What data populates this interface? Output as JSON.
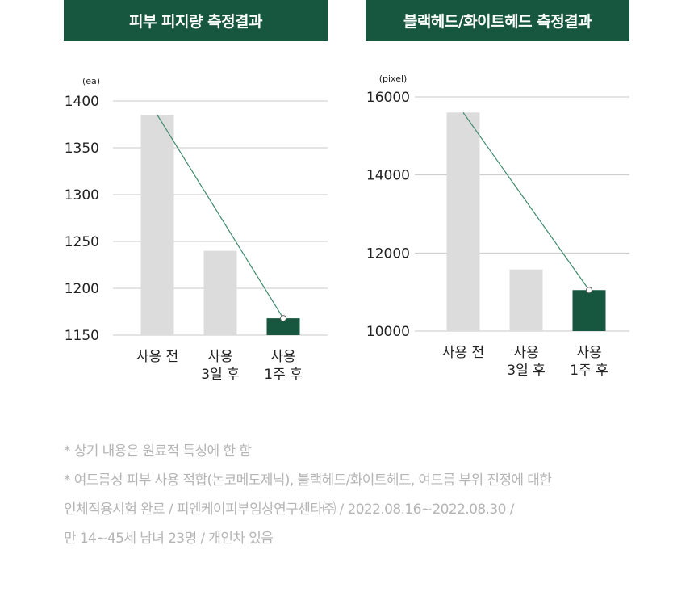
{
  "colors": {
    "header_bg": "#17563f",
    "bar_gray": "#dcdcdc",
    "bar_highlight": "#17563f",
    "trend_line": "#3f8a6c",
    "gridline": "#c8c8c8",
    "axis_text": "#222222",
    "footnote_text": "#b5b5b5"
  },
  "chart_data": [
    {
      "type": "bar",
      "title": "피부 피지량 측정결과",
      "ylabel": "(ea)",
      "ylim": [
        1150,
        1400
      ],
      "yticks": [
        "1400",
        "1350",
        "1300",
        "1250",
        "1200",
        "1150"
      ],
      "categories": [
        [
          "사용 전"
        ],
        [
          "사용",
          "3일 후"
        ],
        [
          "사용",
          "1주 후"
        ]
      ],
      "values": [
        1385,
        1240,
        1168
      ],
      "highlight_index": 2,
      "trend_line": {
        "from_index": 0,
        "to_index": 2
      },
      "grid": true
    },
    {
      "type": "bar",
      "title": "블랙헤드/화이트헤드 측정결과",
      "ylabel": "(pixel)",
      "ylim": [
        10000,
        16000
      ],
      "yticks": [
        "16000",
        "14000",
        "12000",
        "10000"
      ],
      "categories": [
        [
          "사용 전"
        ],
        [
          "사용",
          "3일 후"
        ],
        [
          "사용",
          "1주 후"
        ]
      ],
      "values": [
        15600,
        11580,
        11050
      ],
      "highlight_index": 2,
      "trend_line": {
        "from_index": 0,
        "to_index": 2
      },
      "grid": true
    }
  ],
  "footnotes": [
    "* 상기 내용은 원료적 특성에 한 함",
    "* 여드름성 피부 사용 적합(논코메도제닉), 블랙헤드/화이트헤드, 여드름 부위 진정에 대한",
    "인체적용시험 완료 / 피엔케이피부임상연구센타㈜ / 2022.08.16~2022.08.30 /",
    "만 14~45세 남녀 23명 / 개인차 있음"
  ]
}
